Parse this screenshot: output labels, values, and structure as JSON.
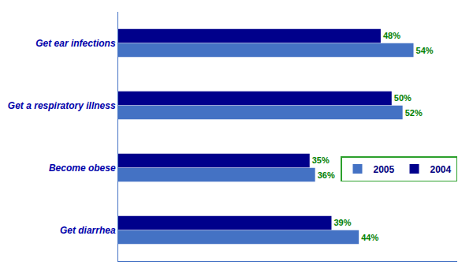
{
  "chart_data": {
    "type": "bar",
    "orientation": "horizontal",
    "categories": [
      "Get diarrhea",
      "Become obese",
      "Get a respiratory illness",
      "Get ear infections"
    ],
    "series": [
      {
        "name": "2005",
        "color": "#4472C4",
        "values": [
          44,
          36,
          52,
          54
        ],
        "value_labels": [
          "44%",
          "36%",
          "52%",
          "54%"
        ]
      },
      {
        "name": "2004",
        "color": "#00008B",
        "values": [
          39,
          35,
          50,
          48
        ],
        "value_labels": [
          "39%",
          "35%",
          "50%",
          "48%"
        ]
      }
    ],
    "xlim": [
      0,
      62
    ],
    "data_labels": true,
    "tick_labels": "y",
    "grid": false,
    "legend": "right"
  }
}
